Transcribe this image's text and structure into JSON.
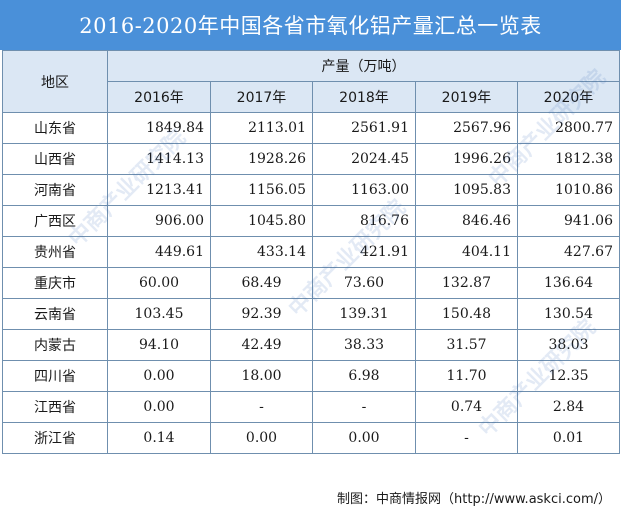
{
  "title": "2016-2020年中国各省市氧化铝产量汇总一览表",
  "table": {
    "region_header": "地区",
    "group_header": "产量（万吨）",
    "years": [
      "2016年",
      "2017年",
      "2018年",
      "2019年",
      "2020年"
    ],
    "rows": [
      {
        "region": "山东省",
        "values": [
          "1849.84",
          "2113.01",
          "2561.91",
          "2567.96",
          "2800.77"
        ]
      },
      {
        "region": "山西省",
        "values": [
          "1414.13",
          "1928.26",
          "2024.45",
          "1996.26",
          "1812.38"
        ]
      },
      {
        "region": "河南省",
        "values": [
          "1213.41",
          "1156.05",
          "1163.00",
          "1095.83",
          "1010.86"
        ]
      },
      {
        "region": "广西区",
        "values": [
          "906.00",
          "1045.80",
          "816.76",
          "846.46",
          "941.06"
        ]
      },
      {
        "region": "贵州省",
        "values": [
          "449.61",
          "433.14",
          "421.91",
          "404.11",
          "427.67"
        ]
      },
      {
        "region": "重庆市",
        "values": [
          "60.00",
          "68.49",
          "73.60",
          "132.87",
          "136.64"
        ]
      },
      {
        "region": "云南省",
        "values": [
          "103.45",
          "92.39",
          "139.31",
          "150.48",
          "130.54"
        ]
      },
      {
        "region": "内蒙古",
        "values": [
          "94.10",
          "42.49",
          "38.33",
          "31.57",
          "38.03"
        ]
      },
      {
        "region": "四川省",
        "values": [
          "0.00",
          "18.00",
          "6.98",
          "11.70",
          "12.35"
        ]
      },
      {
        "region": "江西省",
        "values": [
          "0.00",
          "-",
          "-",
          "0.74",
          "2.84"
        ]
      },
      {
        "region": "浙江省",
        "values": [
          "0.14",
          "0.00",
          "0.00",
          "-",
          "0.01"
        ]
      }
    ]
  },
  "footer": "制图：中商情报网（http://www.askci.com/）",
  "watermark": "中商产业研究院"
}
